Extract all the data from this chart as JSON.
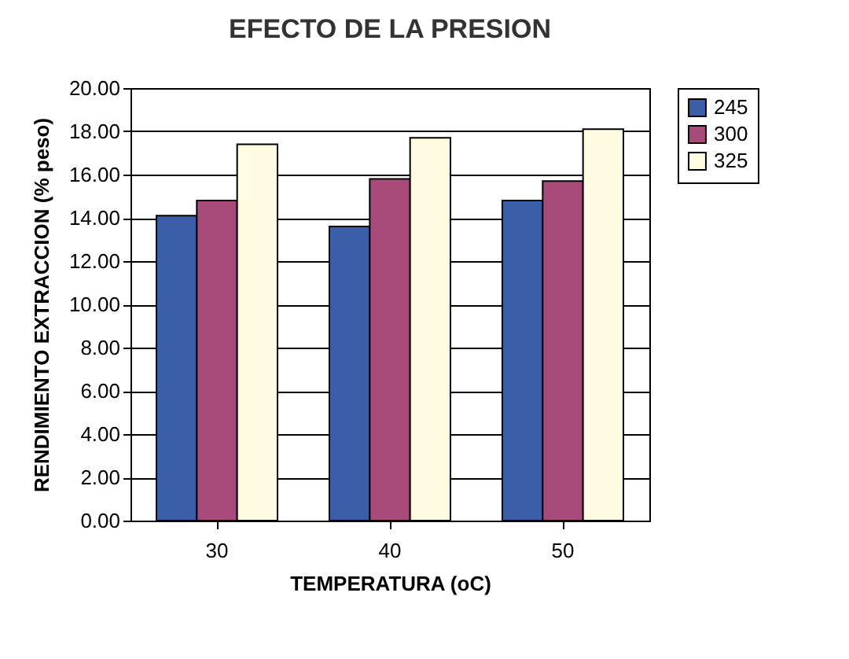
{
  "chart_data": {
    "type": "bar",
    "title": "EFECTO DE LA PRESION",
    "xlabel": "TEMPERATURA (oC)",
    "ylabel": "RENDIMIENTO EXTRACCION (% peso)",
    "categories": [
      "30",
      "40",
      "50"
    ],
    "series": [
      {
        "name": "245",
        "color": "#3a5fa8",
        "values": [
          14.1,
          13.6,
          14.8
        ]
      },
      {
        "name": "300",
        "color": "#a84a7a",
        "values": [
          14.8,
          15.8,
          15.7
        ]
      },
      {
        "name": "325",
        "color": "#fffbe0",
        "values": [
          17.4,
          17.7,
          18.1
        ]
      }
    ],
    "ylim": [
      0,
      20
    ],
    "yticks": [
      {
        "value": 0,
        "label": "0.00"
      },
      {
        "value": 2,
        "label": "2.00"
      },
      {
        "value": 4,
        "label": "4.00"
      },
      {
        "value": 6,
        "label": "6.00"
      },
      {
        "value": 8,
        "label": "8.00"
      },
      {
        "value": 10,
        "label": "10.00"
      },
      {
        "value": 12,
        "label": "12.00"
      },
      {
        "value": 14,
        "label": "14.00"
      },
      {
        "value": 16,
        "label": "16.00"
      },
      {
        "value": 18,
        "label": "18.00"
      },
      {
        "value": 20,
        "label": "20.00"
      }
    ],
    "grid": "y",
    "legend": "right"
  }
}
